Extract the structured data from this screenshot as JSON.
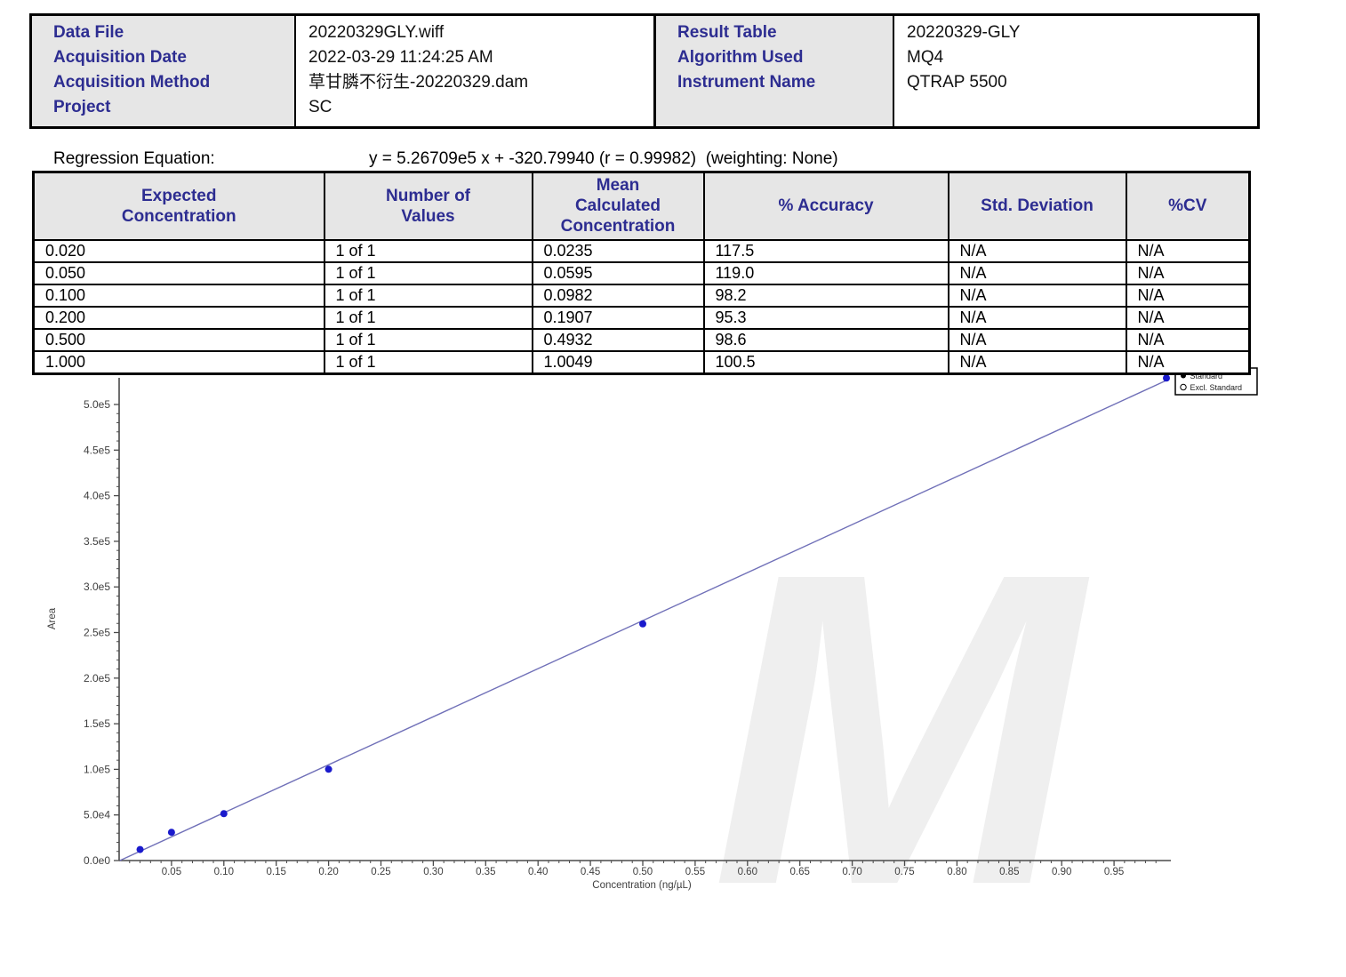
{
  "header_info": {
    "left": {
      "rows": [
        {
          "label": "Data File",
          "value": "20220329GLY.wiff"
        },
        {
          "label": "Acquisition Date",
          "value": "2022-03-29 11:24:25 AM"
        },
        {
          "label": "Acquisition Method",
          "value": "草甘膦不衍生-20220329.dam"
        },
        {
          "label": "Project",
          "value": "SC"
        }
      ]
    },
    "right": {
      "rows": [
        {
          "label": "Result Table",
          "value": "20220329-GLY"
        },
        {
          "label": "Algorithm Used",
          "value": "MQ4"
        },
        {
          "label": "Instrument Name",
          "value": "QTRAP 5500"
        },
        {
          "label": "",
          "value": ""
        }
      ]
    }
  },
  "regression": {
    "label": "Regression Equation:",
    "equation": "y = 5.26709e5 x + -320.79940 (r = 0.99982)  (weighting: None)"
  },
  "main_table": {
    "headers": [
      "Expected\nConcentration",
      "Number of\nValues",
      "Mean\nCalculated\nConcentration",
      "% Accuracy",
      "Std. Deviation",
      "%CV"
    ],
    "rows": [
      [
        "0.020",
        "1 of 1",
        "0.0235",
        "117.5",
        "N/A",
        "N/A"
      ],
      [
        "0.050",
        "1 of 1",
        "0.0595",
        "119.0",
        "N/A",
        "N/A"
      ],
      [
        "0.100",
        "1 of 1",
        "0.0982",
        "98.2",
        "N/A",
        "N/A"
      ],
      [
        "0.200",
        "1 of 1",
        "0.1907",
        "95.3",
        "N/A",
        "N/A"
      ],
      [
        "0.500",
        "1 of 1",
        "0.4932",
        "98.6",
        "N/A",
        "N/A"
      ],
      [
        "1.000",
        "1 of 1",
        "1.0049",
        "100.5",
        "N/A",
        "N/A"
      ]
    ]
  },
  "chart_data": {
    "type": "scatter",
    "title": "",
    "xlabel": "Concentration (ng/µL)",
    "ylabel": "Area",
    "xlim": [
      0,
      1.005
    ],
    "ylim": [
      0,
      530000
    ],
    "grid": false,
    "x_ticks": [
      {
        "v": 0.05,
        "label": "0.05"
      },
      {
        "v": 0.1,
        "label": "0.10"
      },
      {
        "v": 0.15,
        "label": "0.15"
      },
      {
        "v": 0.2,
        "label": "0.20"
      },
      {
        "v": 0.25,
        "label": "0.25"
      },
      {
        "v": 0.3,
        "label": "0.30"
      },
      {
        "v": 0.35,
        "label": "0.35"
      },
      {
        "v": 0.4,
        "label": "0.40"
      },
      {
        "v": 0.45,
        "label": "0.45"
      },
      {
        "v": 0.5,
        "label": "0.50"
      },
      {
        "v": 0.55,
        "label": "0.55"
      },
      {
        "v": 0.6,
        "label": "0.60"
      },
      {
        "v": 0.65,
        "label": "0.65"
      },
      {
        "v": 0.7,
        "label": "0.70"
      },
      {
        "v": 0.75,
        "label": "0.75"
      },
      {
        "v": 0.8,
        "label": "0.80"
      },
      {
        "v": 0.85,
        "label": "0.85"
      },
      {
        "v": 0.9,
        "label": "0.90"
      },
      {
        "v": 0.95,
        "label": "0.95"
      }
    ],
    "y_ticks": [
      {
        "v": 0,
        "label": "0.0e0"
      },
      {
        "v": 50000,
        "label": "5.0e4"
      },
      {
        "v": 100000,
        "label": "1.0e5"
      },
      {
        "v": 150000,
        "label": "1.5e5"
      },
      {
        "v": 200000,
        "label": "2.0e5"
      },
      {
        "v": 250000,
        "label": "2.5e5"
      },
      {
        "v": 300000,
        "label": "3.0e5"
      },
      {
        "v": 350000,
        "label": "3.5e5"
      },
      {
        "v": 400000,
        "label": "4.0e5"
      },
      {
        "v": 450000,
        "label": "4.5e5"
      },
      {
        "v": 500000,
        "label": "5.0e5"
      }
    ],
    "series": [
      {
        "name": "Standard",
        "marker": "filled-circle",
        "color": "#1a1acc",
        "points": [
          {
            "x": 0.02,
            "y": 12100
          },
          {
            "x": 0.05,
            "y": 31000
          },
          {
            "x": 0.1,
            "y": 51400
          },
          {
            "x": 0.2,
            "y": 100100
          },
          {
            "x": 0.5,
            "y": 259500
          },
          {
            "x": 1.0,
            "y": 529000
          }
        ]
      }
    ],
    "fit": {
      "type": "linear",
      "slope": 526709,
      "intercept": -320.7994,
      "r": 0.99982,
      "weighting": "None",
      "color": "#7070b8",
      "x_range": [
        0.0007,
        1.0
      ]
    },
    "legend": {
      "position": "top-right",
      "entries": [
        {
          "marker": "filled-circle",
          "label": "Standard"
        },
        {
          "marker": "open-circle",
          "label": "Excl. Standard"
        }
      ]
    }
  },
  "watermark": {
    "text": "M"
  }
}
